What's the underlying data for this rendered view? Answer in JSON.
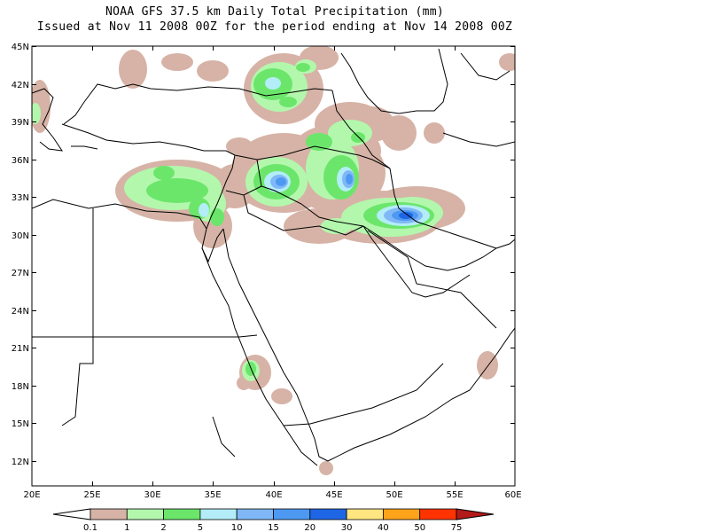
{
  "header": {
    "title": "NOAA GFS 37.5 km Daily Total Precipitation (mm)",
    "subtitle": "Issued at Nov 11 2008 00Z for the period ending at Nov 14 2008 00Z"
  },
  "map": {
    "lat_labels": [
      "45N",
      "42N",
      "39N",
      "36N",
      "33N",
      "30N",
      "27N",
      "24N",
      "21N",
      "18N",
      "15N",
      "12N"
    ],
    "lon_labels": [
      "20E",
      "25E",
      "30E",
      "35E",
      "40E",
      "45E",
      "50E",
      "55E",
      "60E"
    ]
  },
  "legend": {
    "labels": [
      "0.1",
      "1",
      "2",
      "5",
      "10",
      "15",
      "20",
      "30",
      "40",
      "50",
      "75"
    ],
    "colors": [
      "#ffffff",
      "#d6b3a6",
      "#b3f7ad",
      "#6be66b",
      "#b3edf7",
      "#80b8f7",
      "#4d99f2",
      "#1f66e6",
      "#ffe680",
      "#ffa31a",
      "#ff3300",
      "#b31a1a"
    ]
  },
  "precip_areas": {
    "brown": "#d6b3a6",
    "lightgreen": "#b3f7ad",
    "green": "#6be66b",
    "lightblue": "#b3edf7",
    "blue": "#80b8f7",
    "deepblue": "#4d99f2",
    "navy": "#1f66e6"
  }
}
